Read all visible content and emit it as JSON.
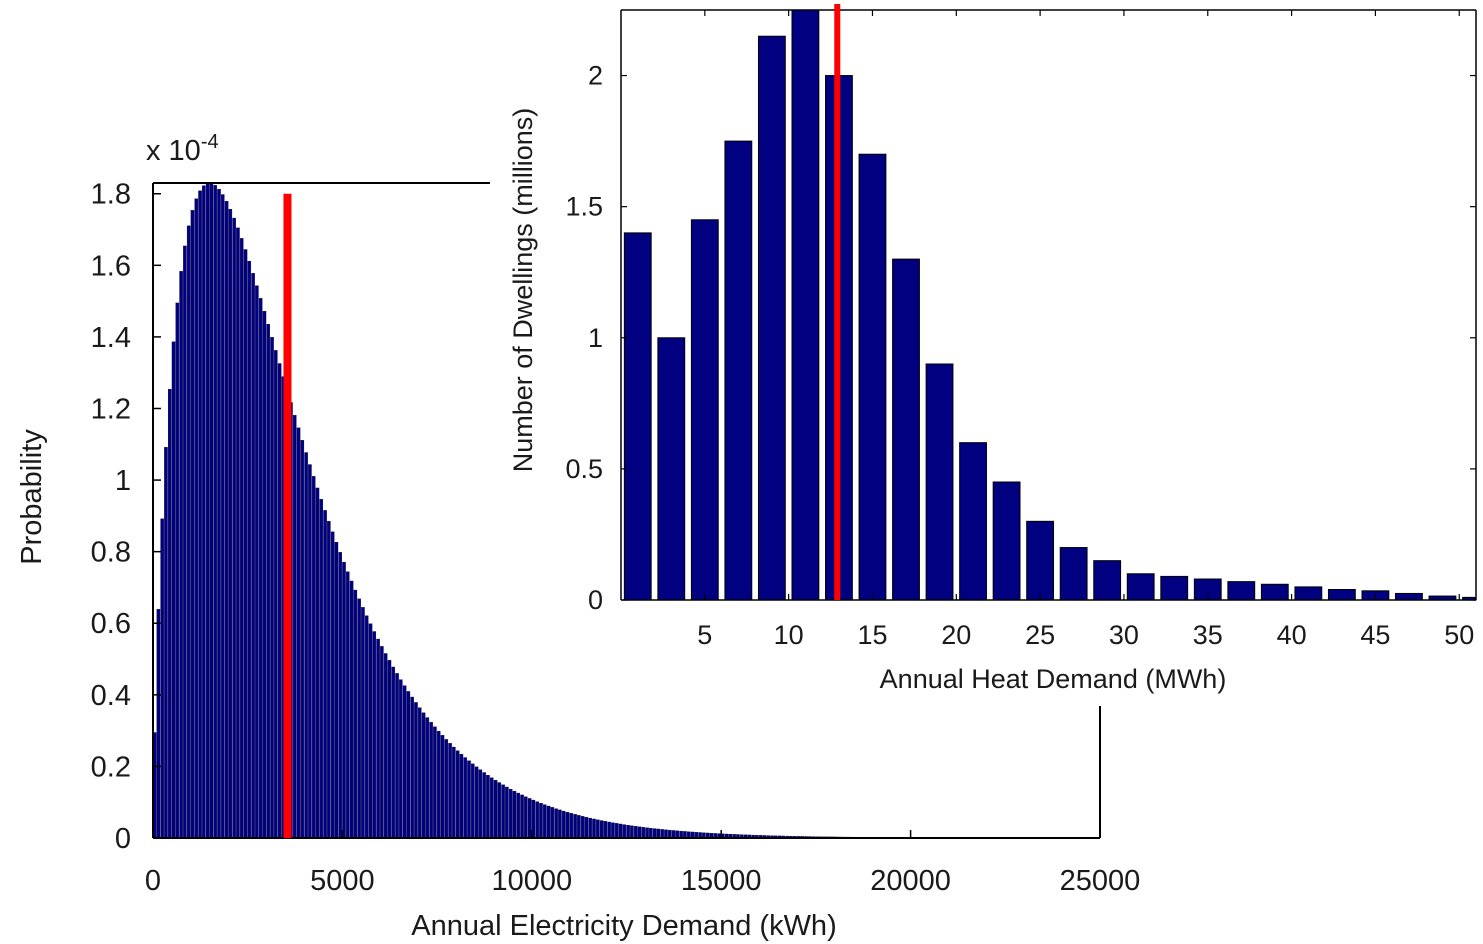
{
  "chart_data": [
    {
      "type": "histogram",
      "xlabel": "Annual Electricity Demand (kWh)",
      "ylabel": "Probability",
      "y_multiplier_label": {
        "base": "x 10",
        "exponent": "-4"
      },
      "xlim": [
        0,
        25000
      ],
      "ylim": [
        0,
        1.83
      ],
      "x_ticks": [
        0,
        5000,
        10000,
        15000,
        20000,
        25000
      ],
      "y_ticks": [
        0,
        0.2,
        0.4,
        0.6,
        0.8,
        1,
        1.2,
        1.4,
        1.6,
        1.8
      ],
      "x_tick_labels": [
        "0",
        "5000",
        "10000",
        "15000",
        "20000",
        "25000"
      ],
      "y_tick_labels": [
        "0",
        "0.2",
        "0.4",
        "0.6",
        "0.8",
        "1",
        "1.2",
        "1.4",
        "1.6",
        "1.8"
      ],
      "bin_width": 100,
      "bins_x_range": [
        0,
        21200
      ],
      "distribution": {
        "shape": "gamma",
        "k": 1.75,
        "theta": 2000,
        "peak_value": 1.83
      },
      "marker_line": {
        "x": 3550,
        "color": "#ff0000"
      },
      "bar_color": "#000080",
      "grid": false
    },
    {
      "type": "bar",
      "xlabel": "Annual Heat Demand (MWh)",
      "ylabel": "Number of Dwellings (millions)",
      "xlim": [
        0,
        51
      ],
      "ylim": [
        0,
        2.25
      ],
      "x_ticks": [
        5,
        10,
        15,
        20,
        25,
        30,
        35,
        40,
        45,
        50
      ],
      "y_ticks": [
        0,
        0.5,
        1,
        1.5,
        2
      ],
      "x_tick_labels": [
        "5",
        "10",
        "15",
        "20",
        "25",
        "30",
        "35",
        "40",
        "45",
        "50"
      ],
      "y_tick_labels": [
        "0",
        "0.5",
        "1",
        "1.5",
        "2"
      ],
      "x": [
        1,
        3,
        5,
        7,
        9,
        11,
        13,
        15,
        17,
        19,
        21,
        23,
        25,
        27,
        29,
        31,
        33,
        35,
        37,
        39,
        41,
        43,
        45,
        47,
        49,
        51
      ],
      "values": [
        1.4,
        1.0,
        1.45,
        1.75,
        2.15,
        2.25,
        2.0,
        1.7,
        1.3,
        0.9,
        0.6,
        0.45,
        0.3,
        0.2,
        0.15,
        0.1,
        0.09,
        0.08,
        0.07,
        0.06,
        0.05,
        0.04,
        0.035,
        0.025,
        0.015,
        0.01
      ],
      "marker_line": {
        "x": 12.9,
        "color": "#ff0000"
      },
      "bar_color": "#000080",
      "grid": false
    }
  ]
}
